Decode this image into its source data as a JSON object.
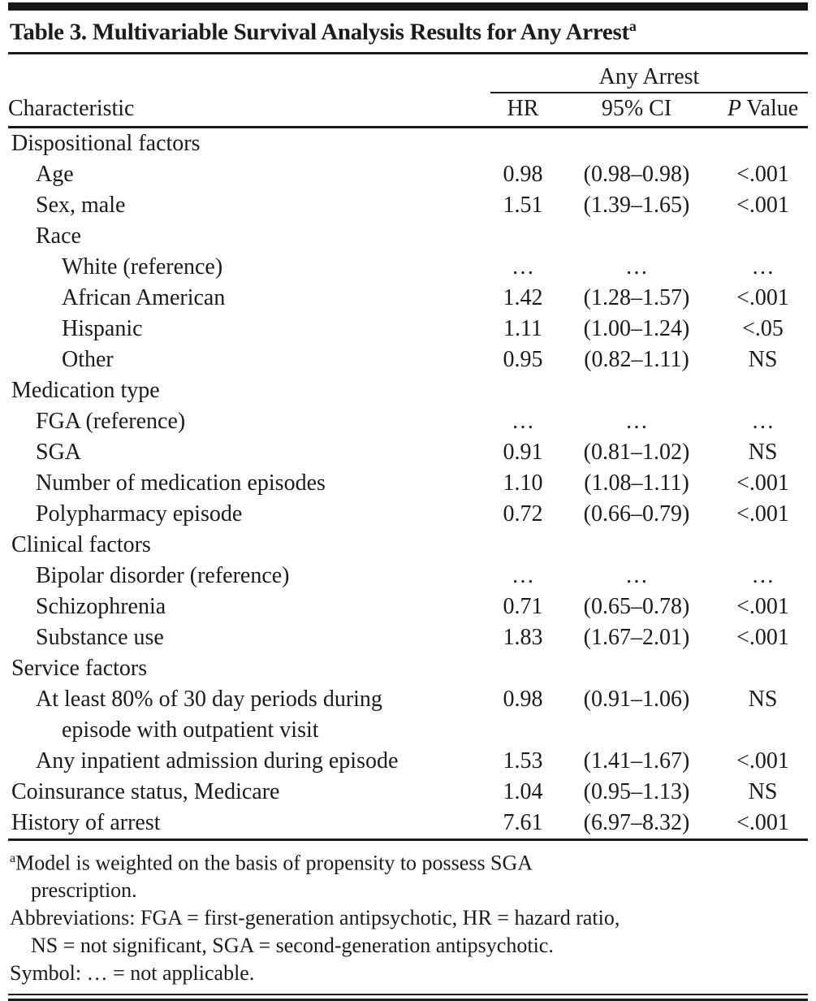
{
  "colors": {
    "text": "#1b1b1b",
    "rule": "#1b1b1b",
    "background": "#ffffff",
    "top_bar": "#161616"
  },
  "title": {
    "text": "Table 3. Multivariable Survival Analysis Results for Any Arrest",
    "superscript": "a"
  },
  "table": {
    "spanner": "Any Arrest",
    "columns": {
      "characteristic": "Characteristic",
      "hr": "HR",
      "ci": "95% CI",
      "p_italic": "P",
      "p_rest": " Value"
    },
    "rows": [
      {
        "label": "Dispositional factors",
        "indent": 0,
        "hr": "",
        "ci": "",
        "p": ""
      },
      {
        "label": "Age",
        "indent": 1,
        "hr": "0.98",
        "ci": "(0.98–0.98)",
        "p": "<.001"
      },
      {
        "label": "Sex, male",
        "indent": 1,
        "hr": "1.51",
        "ci": "(1.39–1.65)",
        "p": "<.001"
      },
      {
        "label": "Race",
        "indent": 1,
        "hr": "",
        "ci": "",
        "p": ""
      },
      {
        "label": "White (reference)",
        "indent": 2,
        "hr": "…",
        "ci": "…",
        "p": "…"
      },
      {
        "label": "African American",
        "indent": 2,
        "hr": "1.42",
        "ci": "(1.28–1.57)",
        "p": "<.001"
      },
      {
        "label": "Hispanic",
        "indent": 2,
        "hr": "1.11",
        "ci": "(1.00–1.24)",
        "p": "<.05"
      },
      {
        "label": "Other",
        "indent": 2,
        "hr": "0.95",
        "ci": "(0.82–1.11)",
        "p": "NS"
      },
      {
        "label": "Medication type",
        "indent": 0,
        "hr": "",
        "ci": "",
        "p": ""
      },
      {
        "label": "FGA (reference)",
        "indent": 1,
        "hr": "…",
        "ci": "…",
        "p": "…"
      },
      {
        "label": "SGA",
        "indent": 1,
        "hr": "0.91",
        "ci": "(0.81–1.02)",
        "p": "NS"
      },
      {
        "label": "Number of medication episodes",
        "indent": 1,
        "hr": "1.10",
        "ci": "(1.08–1.11)",
        "p": "<.001"
      },
      {
        "label": "Polypharmacy episode",
        "indent": 1,
        "hr": "0.72",
        "ci": "(0.66–0.79)",
        "p": "<.001"
      },
      {
        "label": "Clinical factors",
        "indent": 0,
        "hr": "",
        "ci": "",
        "p": ""
      },
      {
        "label": "Bipolar disorder (reference)",
        "indent": 1,
        "hr": "…",
        "ci": "…",
        "p": "…"
      },
      {
        "label": "Schizophrenia",
        "indent": 1,
        "hr": "0.71",
        "ci": "(0.65–0.78)",
        "p": "<.001"
      },
      {
        "label": "Substance use",
        "indent": 1,
        "hr": "1.83",
        "ci": "(1.67–2.01)",
        "p": "<.001"
      },
      {
        "label": "Service factors",
        "indent": 0,
        "hr": "",
        "ci": "",
        "p": ""
      },
      {
        "label": "At least 80% of 30 day periods during",
        "label2": "episode with outpatient visit",
        "indent": 1,
        "hr": "0.98",
        "ci": "(0.91–1.06)",
        "p": "NS"
      },
      {
        "label": "Any inpatient admission during episode",
        "indent": 1,
        "hr": "1.53",
        "ci": "(1.41–1.67)",
        "p": "<.001"
      },
      {
        "label": "Coinsurance status, Medicare",
        "indent": 0,
        "hr": "1.04",
        "ci": "(0.95–1.13)",
        "p": "NS"
      },
      {
        "label": "History of arrest",
        "indent": 0,
        "hr": "7.61",
        "ci": "(6.97–8.32)",
        "p": "<.001"
      }
    ]
  },
  "footnotes": [
    {
      "sup": "a",
      "lines": [
        "Model is weighted on the basis of propensity to possess SGA",
        "prescription."
      ]
    },
    {
      "sup": "",
      "lines": [
        "Abbreviations: FGA = first-generation antipsychotic, HR = hazard ratio,",
        "NS = not significant, SGA = second-generation antipsychotic."
      ]
    },
    {
      "sup": "",
      "lines": [
        "Symbol: … = not applicable."
      ]
    }
  ]
}
